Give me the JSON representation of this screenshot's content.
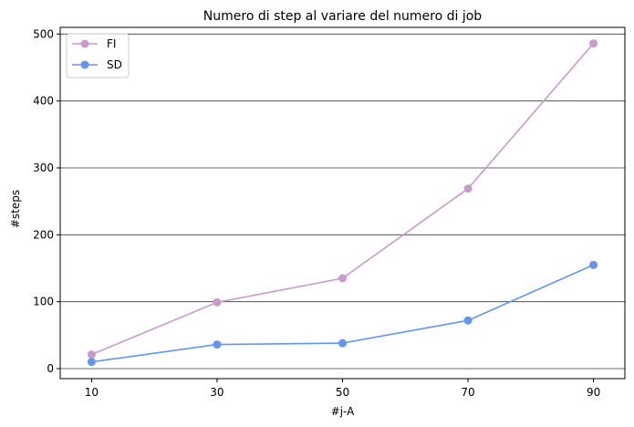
{
  "chart_data": {
    "type": "line",
    "title": "Numero di step al variare del numero di job",
    "xlabel": "#j-A",
    "ylabel": "#steps",
    "x": [
      10,
      30,
      50,
      70,
      90
    ],
    "xticks": [
      "10",
      "30",
      "50",
      "70",
      "90"
    ],
    "yticks": [
      "0",
      "100",
      "200",
      "300",
      "400",
      "500"
    ],
    "xlim": [
      5,
      95
    ],
    "ylim": [
      -15,
      510
    ],
    "grid": "horizontal",
    "legend_position": "top-left",
    "series": [
      {
        "name": "FI",
        "color": "#c89bcc",
        "values": [
          21,
          99,
          135,
          269,
          486
        ]
      },
      {
        "name": "SD",
        "color": "#6495ed",
        "values": [
          10,
          36,
          38,
          72,
          155
        ]
      }
    ]
  }
}
